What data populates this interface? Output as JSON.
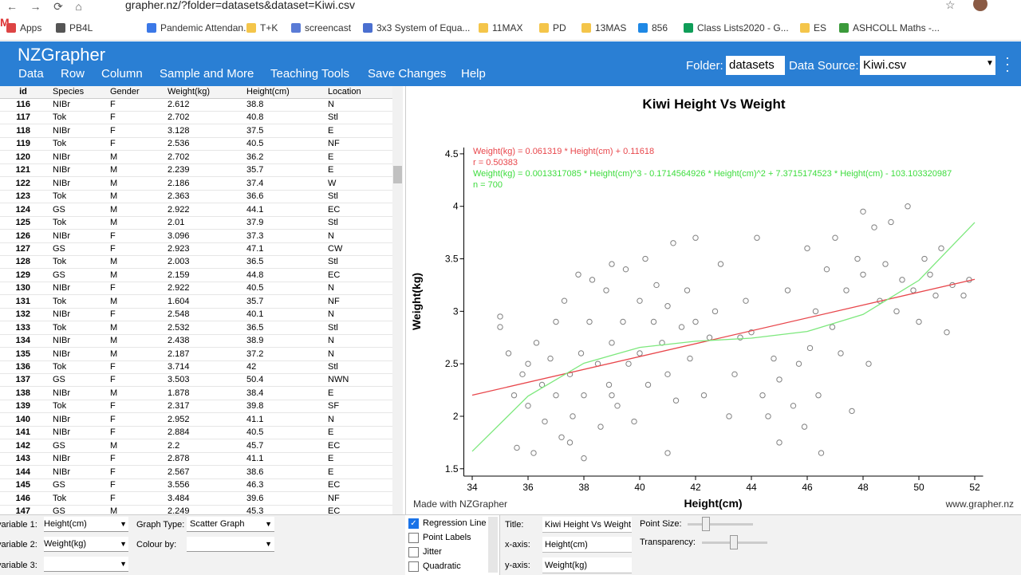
{
  "browser": {
    "url": "grapher.nz/?folder=datasets&dataset=Kiwi.csv",
    "bookmarks": [
      "Apps",
      "PB4L",
      "Pandemic Attendan...",
      "T+K",
      "screencast",
      "3x3 System of Equa...",
      "11MAX",
      "PD",
      "13MAS",
      "856",
      "Class Lists2020 - G...",
      "ES",
      "ASHCOLL Maths -..."
    ]
  },
  "app": {
    "logo": "NZGrapher",
    "menu": [
      "Data",
      "Row",
      "Column",
      "Sample and More",
      "Teaching Tools",
      "Save Changes",
      "Help"
    ],
    "folder_label": "Folder:",
    "folder": "datasets",
    "source_label": "Data Source:",
    "source": "Kiwi.csv"
  },
  "table": {
    "columns": [
      "id",
      "Species",
      "Gender",
      "Weight(kg)",
      "Height(cm)",
      "Location"
    ],
    "rows": [
      [
        "116",
        "NIBr",
        "F",
        "2.612",
        "38.8",
        "N"
      ],
      [
        "117",
        "Tok",
        "F",
        "2.702",
        "40.8",
        "Stl"
      ],
      [
        "118",
        "NIBr",
        "F",
        "3.128",
        "37.5",
        "E"
      ],
      [
        "119",
        "Tok",
        "F",
        "2.536",
        "40.5",
        "NF"
      ],
      [
        "120",
        "NIBr",
        "M",
        "2.702",
        "36.2",
        "E"
      ],
      [
        "121",
        "NIBr",
        "M",
        "2.239",
        "35.7",
        "E"
      ],
      [
        "122",
        "NIBr",
        "M",
        "2.186",
        "37.4",
        "W"
      ],
      [
        "123",
        "Tok",
        "M",
        "2.363",
        "36.6",
        "Stl"
      ],
      [
        "124",
        "GS",
        "M",
        "2.922",
        "44.1",
        "EC"
      ],
      [
        "125",
        "Tok",
        "M",
        "2.01",
        "37.9",
        "Stl"
      ],
      [
        "126",
        "NIBr",
        "F",
        "3.096",
        "37.3",
        "N"
      ],
      [
        "127",
        "GS",
        "F",
        "2.923",
        "47.1",
        "CW"
      ],
      [
        "128",
        "Tok",
        "M",
        "2.003",
        "36.5",
        "Stl"
      ],
      [
        "129",
        "GS",
        "M",
        "2.159",
        "44.8",
        "EC"
      ],
      [
        "130",
        "NIBr",
        "F",
        "2.922",
        "40.5",
        "N"
      ],
      [
        "131",
        "Tok",
        "M",
        "1.604",
        "35.7",
        "NF"
      ],
      [
        "132",
        "NIBr",
        "F",
        "2.548",
        "40.1",
        "N"
      ],
      [
        "133",
        "Tok",
        "M",
        "2.532",
        "36.5",
        "Stl"
      ],
      [
        "134",
        "NIBr",
        "M",
        "2.438",
        "38.9",
        "N"
      ],
      [
        "135",
        "NIBr",
        "M",
        "2.187",
        "37.2",
        "N"
      ],
      [
        "136",
        "Tok",
        "F",
        "3.714",
        "42",
        "Stl"
      ],
      [
        "137",
        "GS",
        "F",
        "3.503",
        "50.4",
        "NWN"
      ],
      [
        "138",
        "NIBr",
        "M",
        "1.878",
        "38.4",
        "E"
      ],
      [
        "139",
        "Tok",
        "F",
        "2.317",
        "39.8",
        "SF"
      ],
      [
        "140",
        "NIBr",
        "F",
        "2.952",
        "41.1",
        "N"
      ],
      [
        "141",
        "NIBr",
        "F",
        "2.884",
        "40.5",
        "E"
      ],
      [
        "142",
        "GS",
        "M",
        "2.2",
        "45.7",
        "EC"
      ],
      [
        "143",
        "NIBr",
        "F",
        "2.878",
        "41.1",
        "E"
      ],
      [
        "144",
        "NIBr",
        "F",
        "2.567",
        "38.6",
        "E"
      ],
      [
        "145",
        "GS",
        "F",
        "3.556",
        "46.3",
        "EC"
      ],
      [
        "146",
        "Tok",
        "F",
        "3.484",
        "39.6",
        "NF"
      ],
      [
        "147",
        "GS",
        "M",
        "2.249",
        "45.3",
        "EC"
      ]
    ]
  },
  "chart_data": {
    "type": "scatter",
    "title": "Kiwi Height Vs Weight",
    "x_label": "Height(cm)",
    "y_label": "Weight(kg)",
    "annotations": [
      {
        "text": "Weight(kg) = 0.061319 * Height(cm) + 0.11618",
        "color": "#e8464b"
      },
      {
        "text": "r = 0.50383",
        "color": "#e8464b"
      },
      {
        "text": "Weight(kg) = 0.0013317085 * Height(cm)^3 - 0.1714564926 * Height(cm)^2 + 7.3715174523 * Height(cm) - 103.103320987",
        "color": "#3ddc3d"
      },
      {
        "text": "n = 700",
        "color": "#3ddc3d"
      }
    ],
    "footer_left": "Made with NZGrapher",
    "footer_right": "www.grapher.nz",
    "xlim": [
      33.7,
      52.3
    ],
    "xticks": [
      34,
      36,
      38,
      40,
      42,
      44,
      46,
      48,
      50,
      52
    ],
    "ylim": [
      1.43,
      4.56
    ],
    "yticks": [
      1.5,
      2,
      2.5,
      3,
      3.5,
      4,
      4.5
    ],
    "series": [
      {
        "type": "scatter",
        "color": "#808080",
        "x": [
          35,
          35,
          35.3,
          35.5,
          35.6,
          35.8,
          36,
          36.2,
          36.3,
          36.5,
          36.6,
          36.8,
          37,
          37,
          37.2,
          37.3,
          37.5,
          37.6,
          37.8,
          37.9,
          38,
          38,
          38.2,
          38.3,
          38.5,
          38.6,
          38.8,
          38.9,
          39,
          39,
          39.2,
          39.4,
          39.5,
          39.6,
          39.8,
          40,
          40,
          40.2,
          40.3,
          40.5,
          40.6,
          40.8,
          41,
          41,
          41.2,
          41.3,
          41.5,
          41.7,
          41.8,
          42,
          42,
          42.3,
          42.5,
          42.7,
          42.9,
          43.2,
          43.4,
          43.6,
          43.8,
          44,
          44.2,
          44.4,
          44.6,
          44.8,
          45,
          45,
          45.3,
          45.5,
          45.7,
          45.9,
          46,
          46.1,
          46.3,
          46.4,
          46.5,
          46.7,
          46.9,
          47,
          47.2,
          47.4,
          47.6,
          47.8,
          48,
          48,
          48.2,
          48.4,
          48.6,
          48.8,
          49,
          49.2,
          49.4,
          49.6,
          49.8,
          50,
          50.2,
          50.4,
          50.6,
          50.8,
          51,
          51.2,
          51.6,
          51.8,
          41,
          37.5,
          39,
          36
        ],
        "y": [
          2.95,
          2.85,
          2.6,
          2.2,
          1.7,
          2.4,
          2.1,
          1.65,
          2.7,
          2.3,
          1.95,
          2.55,
          2.2,
          2.9,
          1.8,
          3.1,
          2.4,
          2,
          3.35,
          2.6,
          2.2,
          1.6,
          2.9,
          3.3,
          2.5,
          1.9,
          3.2,
          2.3,
          2.7,
          3.45,
          2.1,
          2.9,
          3.4,
          2.5,
          1.95,
          3.1,
          2.6,
          3.5,
          2.3,
          2.9,
          3.25,
          2.7,
          3.05,
          2.4,
          3.65,
          2.15,
          2.85,
          3.2,
          2.55,
          3.7,
          2.9,
          2.2,
          2.75,
          3,
          3.45,
          2,
          2.4,
          2.75,
          3.1,
          2.8,
          3.7,
          2.2,
          2,
          2.55,
          1.75,
          2.35,
          3.2,
          2.1,
          2.5,
          1.9,
          3.6,
          2.65,
          3,
          2.2,
          1.65,
          3.4,
          2.85,
          3.7,
          2.6,
          3.2,
          2.05,
          3.5,
          3.95,
          3.35,
          2.5,
          3.8,
          3.1,
          3.45,
          3.85,
          3,
          3.3,
          4,
          3.2,
          2.9,
          3.5,
          3.35,
          3.15,
          3.6,
          2.8,
          3.25,
          3.15,
          3.3,
          1.65,
          1.75,
          2.2,
          2.5
        ]
      },
      {
        "type": "line",
        "color": "#e8464b",
        "x": [
          34,
          52
        ],
        "y": [
          2.201,
          3.3048
        ]
      },
      {
        "type": "line",
        "color": "#7de87d",
        "x": [
          34,
          36,
          38,
          40,
          42,
          44,
          46,
          48,
          50,
          52
        ],
        "y": [
          1.666,
          2.192,
          2.505,
          2.656,
          2.715,
          2.744,
          2.808,
          2.97,
          3.295,
          3.846
        ]
      }
    ]
  },
  "controls": {
    "var1_label": "variable 1:",
    "var1": "Height(cm)",
    "var2_label": "variable 2:",
    "var2": "Weight(kg)",
    "var3_label": "variable 3:",
    "graph_type_label": "Graph Type:",
    "graph_type": "Scatter Graph",
    "colour_label": "Colour by:",
    "options": [
      "Regression Line",
      "Point Labels",
      "Jitter",
      "Quadratic"
    ],
    "title_label": "Title:",
    "title": "Kiwi Height Vs Weight",
    "xaxis_label": "x-axis:",
    "xaxis": "Height(cm)",
    "yaxis_label": "y-axis:",
    "yaxis": "Weight(kg)",
    "point_size_label": "Point Size:",
    "transparency_label": "Transparency:"
  }
}
